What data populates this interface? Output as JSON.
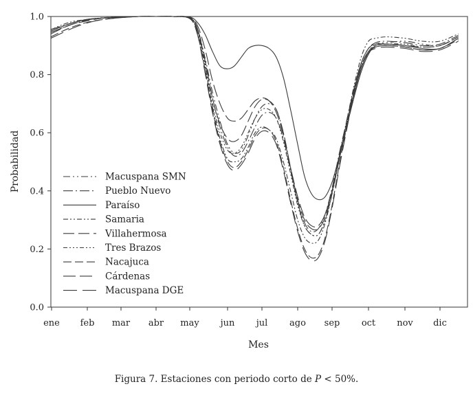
{
  "chart_data": {
    "type": "line",
    "title": "",
    "xlabel": "Mes",
    "ylabel": "Probabilidad",
    "ylim": [
      0,
      1
    ],
    "yticks": [
      "0.0",
      "0.2",
      "0.4",
      "0.6",
      "0.8",
      "1.0"
    ],
    "categories": [
      "ene",
      "feb",
      "mar",
      "abr",
      "may",
      "jun",
      "jul",
      "ago",
      "sep",
      "oct",
      "nov",
      "dic"
    ],
    "x": [
      0.0,
      0.5,
      1.0,
      1.5,
      2.0,
      2.5,
      3.0,
      3.5,
      4.0,
      4.2,
      4.4,
      4.6,
      4.8,
      5.0,
      5.2,
      5.4,
      5.6,
      5.8,
      6.0,
      6.2,
      6.4,
      6.6,
      6.8,
      7.0,
      7.2,
      7.4,
      7.6,
      7.8,
      8.0,
      8.2,
      8.4,
      8.6,
      8.8,
      9.0,
      9.2,
      9.5,
      10.0,
      10.5,
      11.0,
      11.5
    ],
    "series": [
      {
        "name": "Macuspana SMN",
        "values": [
          0.95,
          0.975,
          0.99,
          0.995,
          0.998,
          1.0,
          1.0,
          1.0,
          0.995,
          0.96,
          0.86,
          0.74,
          0.64,
          0.56,
          0.53,
          0.54,
          0.59,
          0.65,
          0.69,
          0.7,
          0.68,
          0.6,
          0.48,
          0.36,
          0.28,
          0.25,
          0.25,
          0.3,
          0.39,
          0.51,
          0.63,
          0.74,
          0.83,
          0.88,
          0.905,
          0.91,
          0.915,
          0.905,
          0.9,
          0.93
        ],
        "dash": "10,4,2,4,2,4"
      },
      {
        "name": "Pueblo Nuevo",
        "values": [
          0.955,
          0.975,
          0.99,
          0.995,
          0.998,
          1.0,
          1.0,
          1.0,
          0.994,
          0.95,
          0.85,
          0.72,
          0.62,
          0.55,
          0.52,
          0.53,
          0.57,
          0.62,
          0.66,
          0.67,
          0.65,
          0.58,
          0.47,
          0.36,
          0.29,
          0.26,
          0.27,
          0.32,
          0.41,
          0.53,
          0.64,
          0.75,
          0.84,
          0.89,
          0.91,
          0.915,
          0.91,
          0.9,
          0.905,
          0.935
        ],
        "dash": "14,4,2,4"
      },
      {
        "name": "Paraíso",
        "values": [
          0.95,
          0.975,
          0.99,
          0.995,
          0.998,
          1.0,
          1.0,
          1.0,
          0.998,
          0.98,
          0.94,
          0.88,
          0.83,
          0.82,
          0.83,
          0.86,
          0.89,
          0.9,
          0.9,
          0.89,
          0.86,
          0.79,
          0.68,
          0.56,
          0.45,
          0.39,
          0.37,
          0.38,
          0.43,
          0.52,
          0.62,
          0.72,
          0.81,
          0.87,
          0.9,
          0.905,
          0.9,
          0.89,
          0.89,
          0.925
        ],
        "dash": ""
      },
      {
        "name": "Samaria",
        "values": [
          0.955,
          0.98,
          0.99,
          0.996,
          0.998,
          1.0,
          1.0,
          1.0,
          0.993,
          0.95,
          0.83,
          0.69,
          0.58,
          0.51,
          0.5,
          0.51,
          0.55,
          0.6,
          0.62,
          0.61,
          0.58,
          0.5,
          0.4,
          0.3,
          0.24,
          0.22,
          0.23,
          0.29,
          0.39,
          0.52,
          0.64,
          0.76,
          0.86,
          0.915,
          0.925,
          0.93,
          0.925,
          0.915,
          0.915,
          0.94
        ],
        "dash": "7,3,2,3,2,3"
      },
      {
        "name": "Villahermosa",
        "values": [
          0.94,
          0.97,
          0.985,
          0.995,
          0.998,
          1.0,
          1.0,
          1.0,
          0.995,
          0.96,
          0.85,
          0.72,
          0.63,
          0.58,
          0.57,
          0.59,
          0.64,
          0.69,
          0.715,
          0.71,
          0.68,
          0.6,
          0.48,
          0.37,
          0.3,
          0.27,
          0.27,
          0.31,
          0.4,
          0.52,
          0.64,
          0.75,
          0.84,
          0.89,
          0.905,
          0.905,
          0.9,
          0.895,
          0.9,
          0.93
        ],
        "dash": "16,6"
      },
      {
        "name": "Tres Brazos",
        "values": [
          0.945,
          0.97,
          0.988,
          0.995,
          0.998,
          1.0,
          1.0,
          1.0,
          0.996,
          0.955,
          0.84,
          0.7,
          0.6,
          0.54,
          0.53,
          0.55,
          0.6,
          0.65,
          0.68,
          0.68,
          0.65,
          0.57,
          0.46,
          0.35,
          0.28,
          0.25,
          0.25,
          0.3,
          0.39,
          0.51,
          0.63,
          0.74,
          0.83,
          0.88,
          0.9,
          0.905,
          0.905,
          0.895,
          0.9,
          0.93
        ],
        "dash": "6,3,2,3,2,3,2,3"
      },
      {
        "name": "Nacajuca",
        "values": [
          0.93,
          0.96,
          0.98,
          0.99,
          0.996,
          1.0,
          1.0,
          1.0,
          0.994,
          0.94,
          0.82,
          0.68,
          0.57,
          0.5,
          0.48,
          0.5,
          0.54,
          0.59,
          0.615,
          0.61,
          0.57,
          0.48,
          0.37,
          0.27,
          0.2,
          0.17,
          0.18,
          0.24,
          0.35,
          0.49,
          0.62,
          0.74,
          0.83,
          0.88,
          0.895,
          0.9,
          0.895,
          0.885,
          0.89,
          0.92
        ],
        "dash": "12,5"
      },
      {
        "name": "Cárdenas",
        "values": [
          0.945,
          0.97,
          0.988,
          0.995,
          0.998,
          1.0,
          1.0,
          1.0,
          0.997,
          0.97,
          0.89,
          0.78,
          0.7,
          0.65,
          0.64,
          0.65,
          0.68,
          0.71,
          0.72,
          0.71,
          0.67,
          0.59,
          0.48,
          0.38,
          0.31,
          0.28,
          0.28,
          0.32,
          0.4,
          0.51,
          0.62,
          0.73,
          0.82,
          0.875,
          0.895,
          0.9,
          0.895,
          0.885,
          0.89,
          0.925
        ],
        "dash": "18,6"
      },
      {
        "name": "Macuspana DGE",
        "values": [
          0.925,
          0.955,
          0.978,
          0.99,
          0.996,
          1.0,
          1.0,
          1.0,
          0.993,
          0.94,
          0.81,
          0.67,
          0.56,
          0.49,
          0.47,
          0.49,
          0.53,
          0.58,
          0.605,
          0.6,
          0.56,
          0.47,
          0.36,
          0.26,
          0.19,
          0.16,
          0.17,
          0.23,
          0.34,
          0.48,
          0.61,
          0.73,
          0.82,
          0.875,
          0.89,
          0.895,
          0.89,
          0.88,
          0.885,
          0.915
        ],
        "dash": "20,8"
      }
    ],
    "legend_position": "bottom-left",
    "grid": false
  },
  "caption": {
    "prefix": "Figura 7. Estaciones con periodo corto de ",
    "var": "P",
    "suffix": " < 50%."
  }
}
